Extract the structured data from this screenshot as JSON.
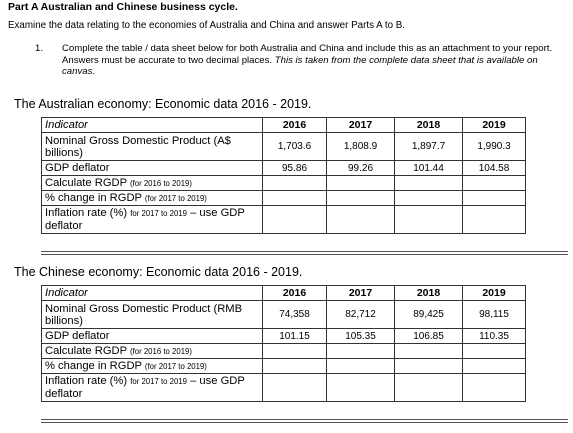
{
  "header": {
    "part_title": "Part A  Australian and Chinese business cycle.",
    "intro": "Examine the data relating to the economies of Australia and China and answer Parts A to B."
  },
  "question": {
    "number": "1.",
    "text": "Complete the table / data sheet below for both Australia and China and include this as an attachment to your report.  Answers must be accurate to two decimal places. ",
    "italic_note": "This is taken from the complete data sheet that is available on canvas."
  },
  "australia": {
    "caption": "The Australian economy:  Economic data 2016 - 2019.",
    "indicator_header": "Indicator",
    "years": [
      "2016",
      "2017",
      "2018",
      "2019"
    ],
    "rows": [
      {
        "label": "Nominal Gross Domestic Product (A$ billions)",
        "values": [
          "1,703.6",
          "1,808.9",
          "1,897.7",
          "1,990.3"
        ]
      },
      {
        "label": "GDP deflator",
        "values": [
          "95.86",
          "99.26",
          "101.44",
          "104.58"
        ]
      },
      {
        "label": "Calculate RGDP",
        "note": "(for 2016 to 2019)",
        "values": [
          "",
          "",
          "",
          ""
        ]
      },
      {
        "label": "% change in RGDP",
        "note": "(for 2017 to 2019)",
        "values": [
          "",
          "",
          "",
          ""
        ]
      },
      {
        "label": "Inflation rate (%)",
        "note": "for 2017 to 2019",
        "suffix": " – use GDP deflator",
        "values": [
          "",
          "",
          "",
          ""
        ]
      }
    ]
  },
  "china": {
    "caption": "The Chinese economy:  Economic data 2016 - 2019.",
    "indicator_header": "Indicator",
    "years": [
      "2016",
      "2017",
      "2018",
      "2019"
    ],
    "rows": [
      {
        "label": "Nominal Gross Domestic Product (RMB billions)",
        "values": [
          "74,358",
          "82,712",
          "89,425",
          "98,115"
        ]
      },
      {
        "label": "GDP deflator",
        "values": [
          "101.15",
          "105.35",
          "106.85",
          "110.35"
        ]
      },
      {
        "label": "Calculate RGDP",
        "note": "(for 2016 to 2019)",
        "values": [
          "",
          "",
          "",
          ""
        ]
      },
      {
        "label": "% change in RGDP",
        "note": "(for 2017 to 2019)",
        "values": [
          "",
          "",
          "",
          ""
        ]
      },
      {
        "label": "Inflation rate (%)",
        "note": "for 2017 to 2019",
        "suffix": " – use GDP deflator",
        "values": [
          "",
          "",
          "",
          ""
        ]
      }
    ]
  }
}
